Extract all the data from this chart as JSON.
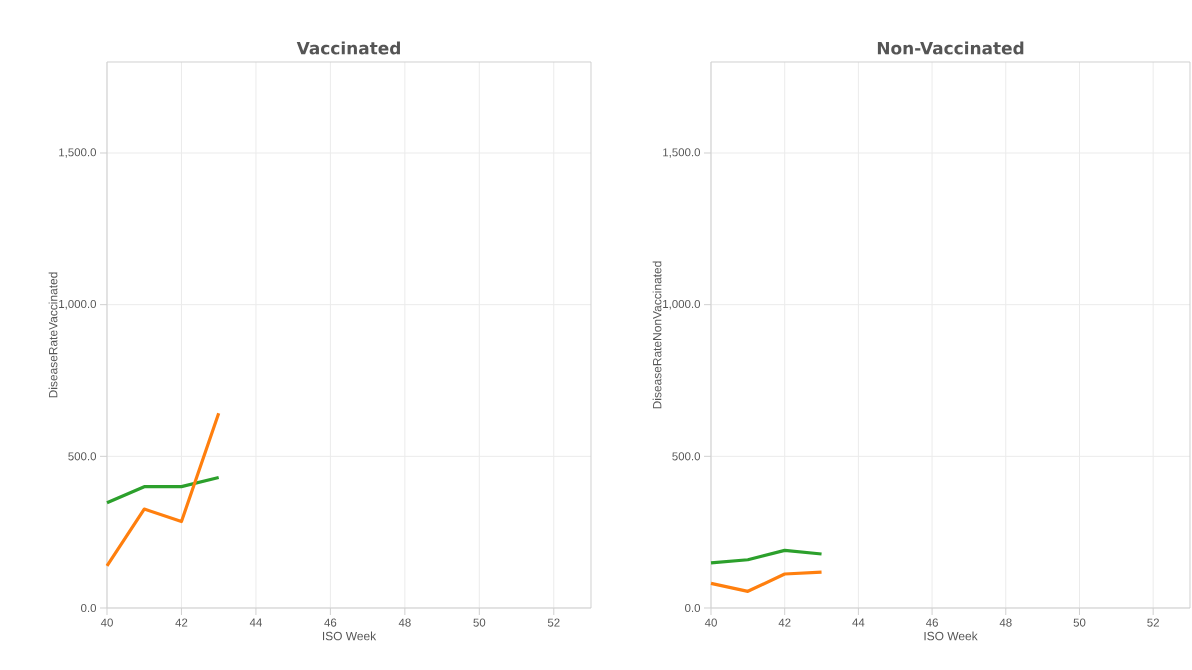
{
  "chart_data": [
    {
      "type": "line",
      "title": "Vaccinated",
      "xlabel": "ISO Week",
      "ylabel": "DiseaseRateVaccinated",
      "x": [
        40,
        41,
        42,
        43
      ],
      "series": [
        {
          "color": "#2ca02c",
          "values": [
            347,
            400,
            400,
            430
          ]
        },
        {
          "color": "#ff7f0e",
          "values": [
            139,
            326,
            285,
            642
          ]
        }
      ],
      "xlim": [
        40,
        53
      ],
      "ylim": [
        0,
        1800
      ],
      "xticks": [
        40,
        42,
        44,
        46,
        48,
        50,
        52
      ],
      "yticks": [
        {
          "value": 0,
          "label": "0.0"
        },
        {
          "value": 500,
          "label": "500.0"
        },
        {
          "value": 1000,
          "label": "1,000.0"
        },
        {
          "value": 1500,
          "label": "1,500.0"
        }
      ],
      "grid": true
    },
    {
      "type": "line",
      "title": "Non-Vaccinated",
      "xlabel": "ISO Week",
      "ylabel": "DiseaseRateNonVaccinated",
      "x": [
        40,
        41,
        42,
        43
      ],
      "series": [
        {
          "color": "#2ca02c",
          "values": [
            149,
            159,
            190,
            178
          ]
        },
        {
          "color": "#ff7f0e",
          "values": [
            81,
            55,
            112,
            118
          ]
        }
      ],
      "xlim": [
        40,
        53
      ],
      "ylim": [
        0,
        1800
      ],
      "xticks": [
        40,
        42,
        44,
        46,
        48,
        50,
        52
      ],
      "yticks": [
        {
          "value": 0,
          "label": "0.0"
        },
        {
          "value": 500,
          "label": "500.0"
        },
        {
          "value": 1000,
          "label": "1,000.0"
        },
        {
          "value": 1500,
          "label": "1,500.0"
        }
      ],
      "grid": true
    }
  ]
}
